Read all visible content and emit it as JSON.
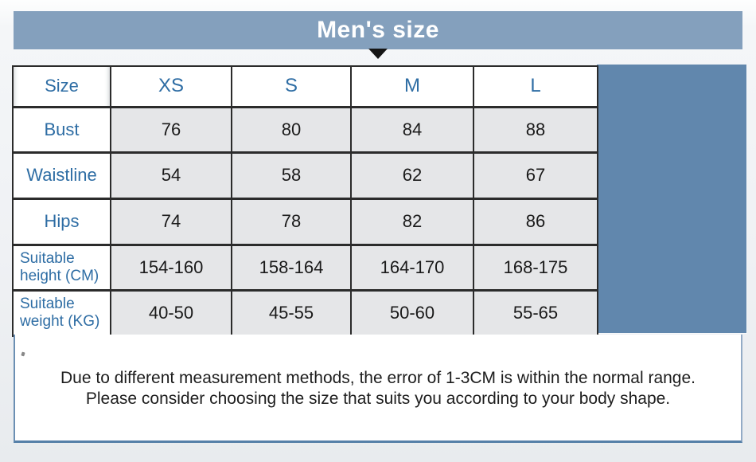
{
  "title": "Men's size",
  "chart_data": {
    "type": "table",
    "title": "Men's size",
    "columns": [
      "Size",
      "XS",
      "S",
      "M",
      "L"
    ],
    "rows": [
      {
        "label": "Bust",
        "values": [
          "76",
          "80",
          "84",
          "88"
        ]
      },
      {
        "label": "Waistline",
        "values": [
          "54",
          "58",
          "62",
          "67"
        ]
      },
      {
        "label": "Hips",
        "values": [
          "74",
          "78",
          "82",
          "86"
        ]
      },
      {
        "label": "Suitable\nheight (CM)",
        "values": [
          "154-160",
          "158-164",
          "164-170",
          "168-175"
        ]
      },
      {
        "label": "Suitable\nweight (KG)",
        "values": [
          "40-50",
          "45-55",
          "50-60",
          "55-65"
        ]
      }
    ]
  },
  "note": {
    "line1": "Due to different measurement methods, the error of 1-3CM is within the normal range.",
    "line2": "Please consider choosing the size that suits you according to your body shape."
  },
  "colors": {
    "header_bar": "#84a0bd",
    "side_block": "#6187ad",
    "label_text": "#2e6da4",
    "cell_bg": "#e5e6e8",
    "note_border": "#5580a8"
  }
}
